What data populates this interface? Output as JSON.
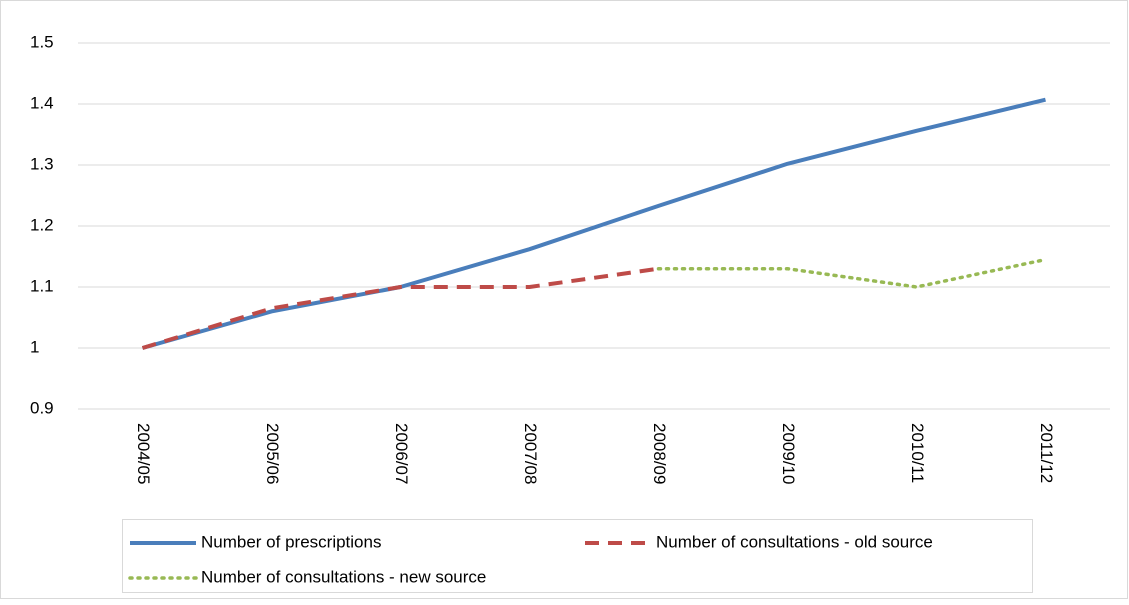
{
  "chart_data": {
    "type": "line",
    "categories": [
      "2004/05",
      "2005/06",
      "2006/07",
      "2007/08",
      "2008/09",
      "2009/10",
      "2010/11",
      "2011/12"
    ],
    "series": [
      {
        "name": "Number of prescriptions",
        "color": "#4a7ebb",
        "style": "solid",
        "values": [
          1.0,
          1.06,
          1.1,
          1.162,
          1.233,
          1.302,
          1.356,
          1.407
        ]
      },
      {
        "name": "Number of consultations - old source",
        "color": "#be4b48",
        "style": "dashed",
        "values": [
          1.0,
          1.065,
          1.1,
          1.1,
          1.13,
          null,
          null,
          null
        ]
      },
      {
        "name": "Number of consultations - new source",
        "color": "#98b954",
        "style": "dotted",
        "values": [
          null,
          null,
          null,
          null,
          1.13,
          1.13,
          1.1,
          1.145
        ]
      }
    ],
    "ylim": [
      0.9,
      1.5
    ],
    "yticks": [
      0.9,
      1,
      1.1,
      1.2,
      1.3,
      1.4,
      1.5
    ],
    "grid": true,
    "legend": "bottom"
  }
}
